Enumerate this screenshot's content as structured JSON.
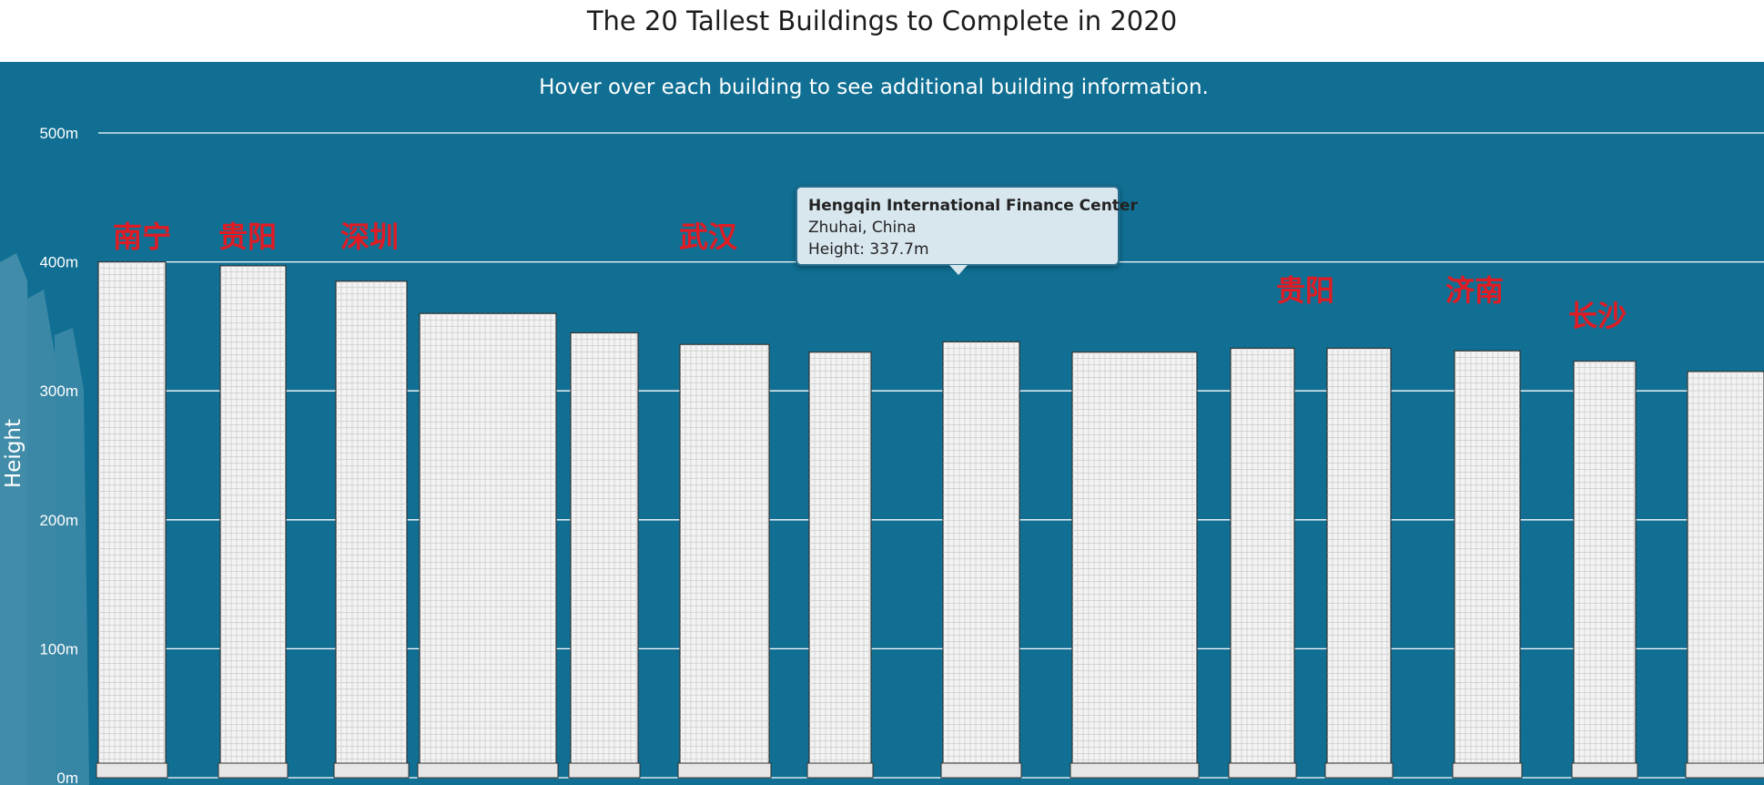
{
  "title": "The 20 Tallest Buildings to Complete in 2020",
  "subtitle": "Hover over each building to see additional building information.",
  "colors": {
    "panel": "#106f93",
    "grid": "#ffffff",
    "building_fill": "#f3f3f3",
    "building_stroke": "#333333",
    "city_label": "#e01b24"
  },
  "chart_data": {
    "type": "bar",
    "title": "The 20 Tallest Buildings to Complete in 2020",
    "ylabel": "Height",
    "ylim": [
      0,
      500
    ],
    "y_ticks": [
      "0m",
      "100m",
      "200m",
      "300m",
      "400m",
      "500m"
    ],
    "grid": true,
    "heights_m": [
      400,
      397,
      385,
      360,
      345,
      336,
      330,
      338,
      330,
      333,
      333,
      331,
      323,
      315
    ]
  },
  "city_labels": [
    "南宁",
    "贵阳",
    "深圳",
    "武汉",
    "贵阳",
    "济南",
    "长沙"
  ],
  "tooltip": {
    "name": "Hengqin International Finance Center",
    "location": "Zhuhai, China",
    "height": "Height: 337.7m"
  }
}
